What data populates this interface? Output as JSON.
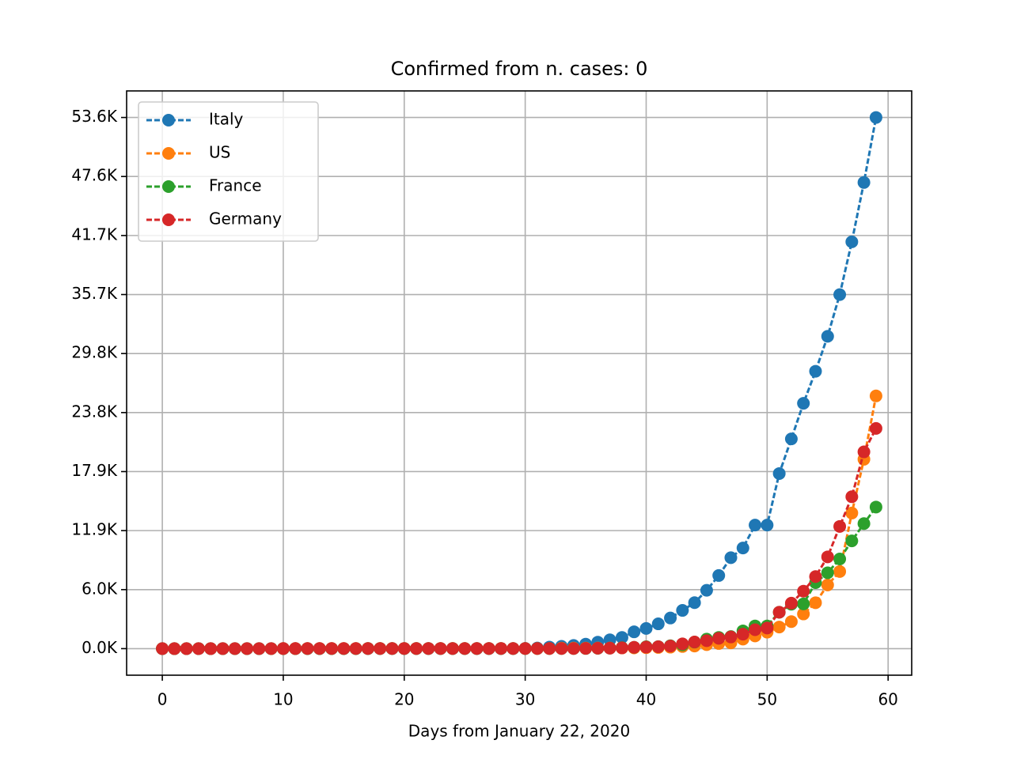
{
  "chart_data": {
    "type": "line",
    "title": "Confirmed from n. cases: 0",
    "xlabel": "Days from January 22, 2020",
    "x": [
      0,
      1,
      2,
      3,
      4,
      5,
      6,
      7,
      8,
      9,
      10,
      11,
      12,
      13,
      14,
      15,
      16,
      17,
      18,
      19,
      20,
      21,
      22,
      23,
      24,
      25,
      26,
      27,
      28,
      29,
      30,
      31,
      32,
      33,
      34,
      35,
      36,
      37,
      38,
      39,
      40,
      41,
      42,
      43,
      44,
      45,
      46,
      47,
      48,
      49,
      50,
      51,
      52,
      53,
      54,
      55,
      56,
      57,
      58,
      59
    ],
    "series": [
      {
        "name": "Italy",
        "color": "#1f77b4",
        "values": [
          0,
          0,
          0,
          0,
          0,
          0,
          0,
          0,
          0,
          2,
          2,
          2,
          2,
          2,
          2,
          2,
          3,
          3,
          3,
          3,
          3,
          3,
          3,
          3,
          3,
          3,
          3,
          3,
          3,
          3,
          20,
          62,
          155,
          229,
          322,
          453,
          655,
          888,
          1128,
          1694,
          2036,
          2502,
          3089,
          3858,
          4636,
          5883,
          7375,
          9172,
          10149,
          12462,
          12462,
          17660,
          21157,
          24747,
          27980,
          31506,
          35713,
          41035,
          47021,
          53578
        ]
      },
      {
        "name": "US",
        "color": "#ff7f0e",
        "values": [
          1,
          1,
          2,
          2,
          5,
          5,
          5,
          5,
          5,
          6,
          8,
          8,
          11,
          11,
          11,
          11,
          11,
          11,
          11,
          11,
          12,
          12,
          13,
          13,
          13,
          13,
          13,
          13,
          13,
          13,
          15,
          15,
          15,
          51,
          51,
          57,
          58,
          60,
          68,
          74,
          98,
          118,
          149,
          217,
          262,
          402,
          518,
          583,
          959,
          1281,
          1663,
          2179,
          2727,
          3499,
          4632,
          6421,
          7783,
          13677,
          19100,
          25489
        ]
      },
      {
        "name": "France",
        "color": "#2ca02c",
        "values": [
          0,
          0,
          2,
          3,
          3,
          3,
          4,
          5,
          5,
          5,
          6,
          6,
          6,
          6,
          6,
          6,
          6,
          11,
          11,
          11,
          11,
          11,
          11,
          11,
          12,
          12,
          12,
          12,
          12,
          12,
          12,
          12,
          12,
          12,
          14,
          18,
          38,
          57,
          100,
          130,
          191,
          204,
          288,
          380,
          656,
          957,
          1134,
          1217,
          1792,
          2289,
          2289,
          3672,
          4480,
          4513,
          6650,
          7652,
          9043,
          10871,
          12612,
          14282
        ]
      },
      {
        "name": "Germany",
        "color": "#d62728",
        "values": [
          0,
          0,
          0,
          0,
          0,
          1,
          4,
          4,
          4,
          5,
          8,
          10,
          12,
          12,
          12,
          12,
          13,
          13,
          14,
          14,
          16,
          16,
          16,
          16,
          16,
          16,
          16,
          16,
          16,
          16,
          16,
          16,
          16,
          16,
          17,
          27,
          46,
          48,
          79,
          130,
          159,
          196,
          262,
          482,
          670,
          799,
          1040,
          1176,
          1457,
          1908,
          2078,
          3675,
          4585,
          5795,
          7272,
          9257,
          12327,
          15320,
          19848,
          22213
        ]
      }
    ],
    "xlim": [
      -2.95,
      61.95
    ],
    "xticks": [
      0,
      10,
      20,
      30,
      40,
      50,
      60
    ],
    "ylim": [
      -2679,
      56257
    ],
    "yticks": [
      {
        "value": 0,
        "label": "0.0K"
      },
      {
        "value": 5953,
        "label": "6.0K"
      },
      {
        "value": 11906,
        "label": "11.9K"
      },
      {
        "value": 17859,
        "label": "17.9K"
      },
      {
        "value": 23812,
        "label": "23.8K"
      },
      {
        "value": 29766,
        "label": "29.8K"
      },
      {
        "value": 35719,
        "label": "35.7K"
      },
      {
        "value": 41672,
        "label": "41.7K"
      },
      {
        "value": 47625,
        "label": "47.6K"
      },
      {
        "value": 53578,
        "label": "53.6K"
      }
    ],
    "grid": true,
    "legend": "upper left",
    "linestyle": "dashed",
    "marker": "circle"
  }
}
